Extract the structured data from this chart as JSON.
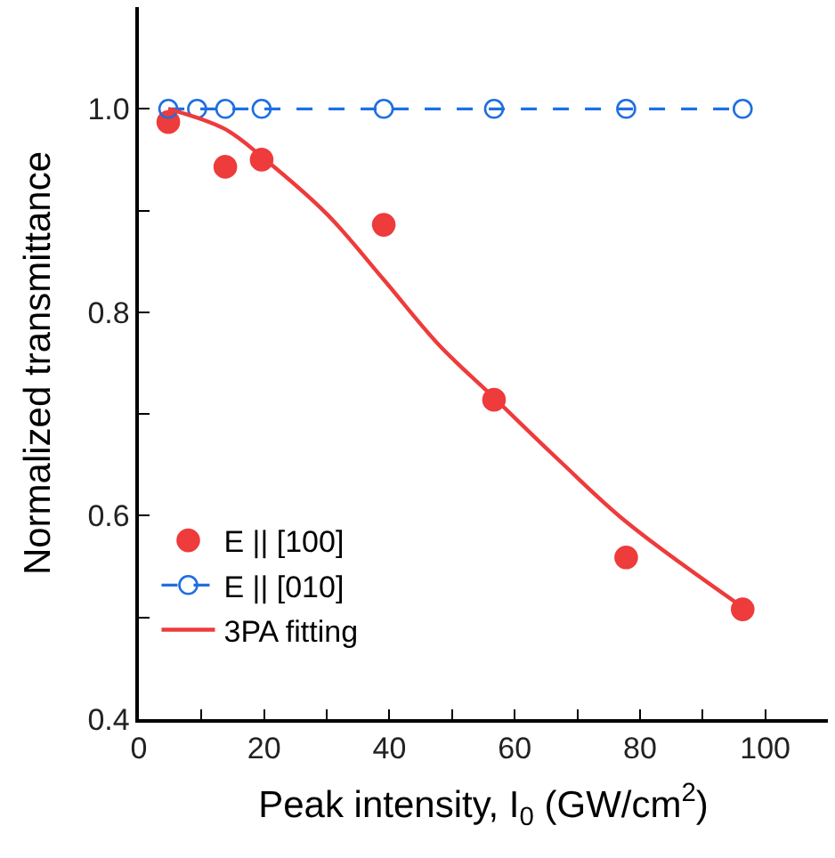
{
  "chart_data": {
    "type": "scatter",
    "xlabel": "Peak intensity, I$_{0}$ (GW/cm$^{2}$)",
    "ylabel": "Normalized transmittance",
    "xlim": [
      0,
      110
    ],
    "ylim": [
      0.4,
      1.1
    ],
    "xticks": [
      0,
      {
        "value": 10,
        "label": null
      },
      20,
      {
        "value": 30,
        "label": null
      },
      40,
      {
        "value": 50,
        "label": null
      },
      60,
      {
        "value": 70,
        "label": null
      },
      80,
      {
        "value": 90,
        "label": null
      },
      100
    ],
    "yticks": [
      {
        "value": 0.4,
        "label": "0.4"
      },
      {
        "value": 0.5,
        "label": null
      },
      {
        "value": 0.6,
        "label": "0.6"
      },
      {
        "value": 0.7,
        "label": null
      },
      {
        "value": 0.8,
        "label": "0.8"
      },
      {
        "value": 0.9,
        "label": null
      },
      {
        "value": 1.0,
        "label": "1.0"
      }
    ],
    "legend": "bottom left",
    "series": [
      {
        "name": "E || [100]",
        "marker": "circle",
        "color": "#ee3b3b",
        "x": [
          4.7,
          13.8,
          19.6,
          39.1,
          56.7,
          77.8,
          96.4
        ],
        "values": [
          0.987,
          0.943,
          0.95,
          0.886,
          0.714,
          0.559,
          0.508
        ]
      },
      {
        "name": "E || [010]",
        "type": "line",
        "marker": "circle",
        "line_style": "dashed",
        "color": "#1f6fe0",
        "x": [
          4.7,
          9.3,
          13.8,
          19.6,
          39.1,
          56.7,
          77.8,
          96.4
        ],
        "values": [
          1.0,
          1.0,
          1.0,
          1.0,
          1.0,
          1.0,
          1.0,
          1.0
        ]
      },
      {
        "name": "3PA fitting",
        "type": "line",
        "marker": "none",
        "line_style": "solid",
        "color": "#ee3b3b",
        "x": [
          4.7,
          13.8,
          20,
          30.1,
          39.1,
          47.9,
          56.7,
          67.5,
          77.8,
          96.4
        ],
        "values": [
          1.0,
          0.98,
          0.951,
          0.896,
          0.832,
          0.768,
          0.716,
          0.652,
          0.594,
          0.51
        ]
      }
    ]
  }
}
